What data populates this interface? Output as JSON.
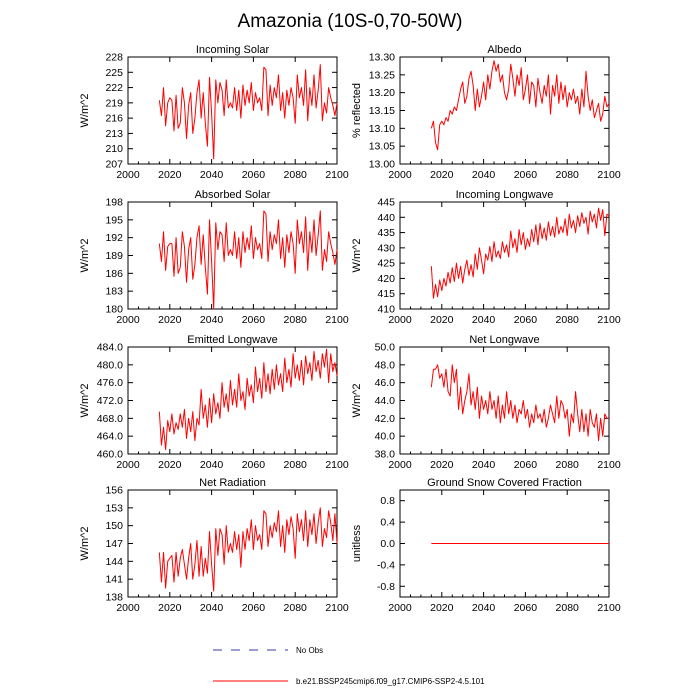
{
  "title": "Amazonia (10S-0,70-50W)",
  "legend": [
    {
      "label": "No Obs",
      "style": "dashed",
      "color": "#3a3aa0"
    },
    {
      "label": "b.e21.BSSP245cmip6.f09_g17.CMIP6-SSP2-4.5.101",
      "style": "solid",
      "color": "#ff0000"
    }
  ],
  "chart_data": [
    {
      "type": "line",
      "title": "Incoming Solar",
      "ylabel": "W/m^2",
      "xlim": [
        2000,
        2100
      ],
      "xticks": [
        "2000",
        "2020",
        "2040",
        "2060",
        "2080",
        "2100"
      ],
      "ylim": [
        207,
        228
      ],
      "yticks": [
        "207",
        "210",
        "213",
        "216",
        "219",
        "222",
        "225",
        "228"
      ],
      "yvals": [
        207,
        210,
        213,
        216,
        219,
        222,
        225,
        228
      ],
      "series": [
        {
          "name": "b.e21.BSSP245cmip6.f09_g17.CMIP6-SSP2-4.5.101",
          "color": "#ff0000",
          "x_start": 2015,
          "values": [
            219.5,
            216.5,
            222.0,
            214.5,
            219.0,
            220.0,
            219.5,
            213.5,
            220.5,
            214.0,
            215.0,
            222.0,
            219.0,
            212.0,
            218.5,
            221.0,
            213.0,
            216.0,
            221.0,
            223.5,
            216.0,
            221.0,
            215.0,
            210.5,
            224.0,
            217.0,
            208.0,
            223.5,
            219.0,
            223.0,
            221.5,
            216.5,
            223.5,
            218.0,
            219.0,
            218.0,
            222.0,
            217.5,
            221.5,
            216.0,
            222.5,
            218.5,
            221.5,
            219.0,
            223.0,
            217.5,
            221.0,
            219.0,
            220.0,
            217.5,
            226.0,
            225.5,
            216.5,
            222.5,
            218.5,
            222.0,
            220.0,
            224.5,
            217.5,
            221.0,
            216.0,
            221.5,
            218.5,
            222.0,
            220.0,
            215.0,
            224.5,
            220.0,
            222.0,
            218.5,
            225.5,
            215.5,
            222.0,
            218.5,
            224.5,
            218.0,
            221.5,
            226.5,
            215.5,
            219.0,
            217.0,
            222.0,
            220.0,
            218.5,
            216.5,
            219.0
          ]
        }
      ]
    },
    {
      "type": "line",
      "title": "Albedo",
      "ylabel": "% reflected",
      "xlim": [
        2000,
        2100
      ],
      "xticks": [
        "2000",
        "2020",
        "2040",
        "2060",
        "2080",
        "2100"
      ],
      "ylim": [
        13.0,
        13.3
      ],
      "yticks": [
        "13.00",
        "13.05",
        "13.10",
        "13.15",
        "13.20",
        "13.25",
        "13.30"
      ],
      "yvals": [
        13.0,
        13.05,
        13.1,
        13.15,
        13.2,
        13.25,
        13.3
      ],
      "series": [
        {
          "name": "b.e21.BSSP245cmip6.f09_g17.CMIP6-SSP2-4.5.101",
          "color": "#ff0000",
          "x_start": 2015,
          "values": [
            13.1,
            13.12,
            13.06,
            13.04,
            13.11,
            13.12,
            13.11,
            13.13,
            13.12,
            13.15,
            13.14,
            13.16,
            13.15,
            13.18,
            13.21,
            13.23,
            13.17,
            13.19,
            13.24,
            13.26,
            13.22,
            13.15,
            13.21,
            13.16,
            13.19,
            13.23,
            13.18,
            13.25,
            13.21,
            13.26,
            13.29,
            13.26,
            13.28,
            13.23,
            13.25,
            13.2,
            13.18,
            13.21,
            13.28,
            13.24,
            13.19,
            13.25,
            13.22,
            13.27,
            13.18,
            13.21,
            13.25,
            13.17,
            13.23,
            13.22,
            13.16,
            13.24,
            13.2,
            13.17,
            13.22,
            13.19,
            13.25,
            13.14,
            13.22,
            13.19,
            13.25,
            13.17,
            13.23,
            13.18,
            13.22,
            13.16,
            13.2,
            13.18,
            13.21,
            13.17,
            13.19,
            13.14,
            13.21,
            13.16,
            13.26,
            13.19,
            13.15,
            13.18,
            13.13,
            13.15,
            13.17,
            13.12,
            13.14,
            13.19,
            13.16,
            13.17
          ]
        }
      ]
    },
    {
      "type": "line",
      "title": "Absorbed Solar",
      "ylabel": "W/m^2",
      "xlim": [
        2000,
        2100
      ],
      "xticks": [
        "2000",
        "2020",
        "2040",
        "2060",
        "2080",
        "2100"
      ],
      "ylim": [
        180,
        198
      ],
      "yticks": [
        "180",
        "183",
        "186",
        "189",
        "192",
        "195",
        "198"
      ],
      "yvals": [
        180,
        183,
        186,
        189,
        192,
        195,
        198
      ],
      "series": [
        {
          "name": "b.e21.BSSP245cmip6.f09_g17.CMIP6-SSP2-4.5.101",
          "color": "#ff0000",
          "x_start": 2015,
          "values": [
            191.0,
            188.0,
            193.0,
            186.5,
            190.5,
            191.0,
            191.0,
            185.5,
            192.0,
            186.0,
            187.0,
            193.0,
            190.5,
            184.5,
            190.0,
            192.0,
            185.0,
            187.5,
            192.0,
            194.0,
            187.5,
            192.5,
            187.0,
            182.5,
            195.0,
            188.0,
            180.0,
            194.5,
            190.0,
            193.0,
            192.5,
            188.0,
            194.5,
            189.0,
            190.0,
            189.0,
            193.0,
            188.5,
            192.0,
            187.0,
            193.0,
            189.5,
            192.0,
            190.0,
            194.0,
            188.5,
            192.0,
            190.0,
            191.0,
            188.5,
            196.5,
            196.0,
            188.0,
            193.0,
            190.0,
            192.5,
            191.0,
            195.0,
            188.5,
            192.0,
            187.0,
            192.5,
            189.5,
            193.0,
            191.0,
            186.0,
            195.0,
            191.0,
            193.0,
            189.5,
            195.5,
            186.5,
            193.0,
            189.5,
            195.0,
            189.0,
            192.5,
            196.5,
            186.5,
            190.0,
            188.0,
            193.0,
            191.0,
            189.5,
            187.5,
            190.0
          ]
        }
      ]
    },
    {
      "type": "line",
      "title": "Incoming Longwave",
      "ylabel": "W/m^2",
      "xlim": [
        2000,
        2100
      ],
      "xticks": [
        "2000",
        "2020",
        "2040",
        "2060",
        "2080",
        "2100"
      ],
      "ylim": [
        410,
        445
      ],
      "yticks": [
        "410",
        "415",
        "420",
        "425",
        "430",
        "435",
        "440",
        "445"
      ],
      "yvals": [
        410,
        415,
        420,
        425,
        430,
        435,
        440,
        445
      ],
      "series": [
        {
          "name": "b.e21.BSSP245cmip6.f09_g17.CMIP6-SSP2-4.5.101",
          "color": "#ff0000",
          "x_start": 2015,
          "values": [
            424.0,
            413.5,
            418.0,
            414.0,
            419.5,
            416.0,
            420.0,
            417.5,
            422.0,
            418.5,
            423.5,
            419.0,
            425.0,
            420.0,
            424.0,
            418.5,
            423.0,
            426.0,
            421.0,
            424.5,
            420.5,
            428.0,
            423.0,
            430.0,
            426.0,
            421.5,
            428.0,
            426.0,
            430.5,
            425.5,
            432.0,
            427.0,
            429.0,
            426.5,
            432.0,
            428.5,
            431.0,
            427.0,
            435.5,
            430.0,
            433.0,
            428.5,
            436.0,
            431.0,
            435.0,
            429.5,
            433.0,
            430.5,
            436.0,
            432.0,
            437.5,
            431.0,
            438.0,
            433.0,
            436.5,
            432.5,
            438.5,
            434.0,
            437.0,
            433.5,
            440.0,
            434.5,
            437.0,
            435.0,
            439.5,
            434.0,
            441.0,
            436.5,
            439.0,
            435.0,
            440.5,
            437.0,
            441.5,
            438.0,
            440.0,
            434.5,
            442.0,
            438.5,
            441.0,
            436.5,
            443.0,
            439.0,
            442.5,
            434.0,
            441.0,
            440.5
          ]
        }
      ]
    },
    {
      "type": "line",
      "title": "Emitted Longwave",
      "ylabel": "W/m^2",
      "xlim": [
        2000,
        2100
      ],
      "xticks": [
        "2000",
        "2020",
        "2040",
        "2060",
        "2080",
        "2100"
      ],
      "ylim": [
        460,
        484
      ],
      "yticks": [
        "460.0",
        "464.0",
        "468.0",
        "472.0",
        "476.0",
        "480.0",
        "484.0"
      ],
      "yvals": [
        460,
        464,
        468,
        472,
        476,
        480,
        484
      ],
      "series": [
        {
          "name": "b.e21.BSSP245cmip6.f09_g17.CMIP6-SSP2-4.5.101",
          "color": "#ff0000",
          "x_start": 2015,
          "values": [
            469.5,
            462.0,
            466.0,
            461.0,
            467.5,
            465.0,
            469.0,
            464.5,
            467.0,
            465.5,
            469.0,
            466.0,
            470.0,
            463.5,
            468.0,
            465.0,
            469.5,
            463.0,
            468.0,
            466.5,
            474.5,
            468.0,
            471.0,
            466.0,
            472.5,
            467.0,
            473.5,
            469.0,
            471.5,
            468.0,
            476.0,
            470.5,
            473.5,
            469.5,
            476.5,
            471.0,
            474.5,
            470.5,
            478.0,
            472.0,
            474.0,
            470.0,
            477.0,
            473.0,
            475.5,
            471.5,
            479.5,
            474.0,
            477.0,
            472.5,
            480.5,
            474.0,
            478.0,
            473.5,
            479.0,
            474.5,
            480.0,
            475.5,
            478.0,
            474.0,
            481.5,
            476.0,
            479.0,
            475.0,
            482.5,
            477.0,
            480.0,
            476.5,
            481.0,
            475.5,
            482.0,
            478.0,
            480.5,
            476.5,
            483.0,
            478.5,
            481.0,
            477.0,
            482.5,
            479.5,
            483.5,
            476.0,
            482.5,
            478.5,
            480.5,
            477.5
          ]
        }
      ]
    },
    {
      "type": "line",
      "title": "Net Longwave",
      "ylabel": "W/m^2",
      "xlim": [
        2000,
        2100
      ],
      "xticks": [
        "2000",
        "2020",
        "2040",
        "2060",
        "2080",
        "2100"
      ],
      "ylim": [
        38,
        50
      ],
      "yticks": [
        "38.0",
        "40.0",
        "42.0",
        "44.0",
        "46.0",
        "48.0",
        "50.0"
      ],
      "yvals": [
        38,
        40,
        42,
        44,
        46,
        48,
        50
      ],
      "series": [
        {
          "name": "b.e21.BSSP245cmip6.f09_g17.CMIP6-SSP2-4.5.101",
          "color": "#ff0000",
          "x_start": 2015,
          "values": [
            45.5,
            47.5,
            47.5,
            48.0,
            46.5,
            47.0,
            45.5,
            47.5,
            45.0,
            44.5,
            48.0,
            46.0,
            47.5,
            43.0,
            45.5,
            42.5,
            44.0,
            45.0,
            47.0,
            43.5,
            45.0,
            43.0,
            45.5,
            42.0,
            44.5,
            43.0,
            44.0,
            42.5,
            45.0,
            43.0,
            44.0,
            42.0,
            44.5,
            41.5,
            43.5,
            42.0,
            45.0,
            42.5,
            44.0,
            42.0,
            43.5,
            41.5,
            43.0,
            42.5,
            44.0,
            42.0,
            43.0,
            41.0,
            42.5,
            41.5,
            43.5,
            42.0,
            42.5,
            41.5,
            43.0,
            41.0,
            42.0,
            43.5,
            42.5,
            41.5,
            44.5,
            42.0,
            44.0,
            43.5,
            42.0,
            43.0,
            40.0,
            42.5,
            41.5,
            45.0,
            42.5,
            40.5,
            43.0,
            40.5,
            42.5,
            40.0,
            43.0,
            41.5,
            41.0,
            42.5,
            39.5,
            42.0,
            40.0,
            42.5,
            42.0,
            42.0
          ]
        }
      ]
    },
    {
      "type": "line",
      "title": "Net Radiation",
      "ylabel": "W/m^2",
      "xlim": [
        2000,
        2100
      ],
      "xticks": [
        "2000",
        "2020",
        "2040",
        "2060",
        "2080",
        "2100"
      ],
      "ylim": [
        138,
        156
      ],
      "yticks": [
        "138",
        "141",
        "144",
        "147",
        "150",
        "153",
        "156"
      ],
      "yvals": [
        138,
        141,
        144,
        147,
        150,
        153,
        156
      ],
      "series": [
        {
          "name": "b.e21.BSSP245cmip6.f09_g17.CMIP6-SSP2-4.5.101",
          "color": "#ff0000",
          "x_start": 2015,
          "values": [
            145.5,
            140.5,
            145.5,
            139.5,
            144.0,
            144.5,
            145.0,
            140.5,
            145.5,
            141.5,
            144.5,
            146.0,
            143.5,
            141.0,
            144.5,
            147.0,
            141.0,
            143.5,
            147.5,
            141.5,
            146.5,
            141.5,
            144.5,
            142.0,
            149.0,
            143.5,
            139.0,
            149.5,
            145.0,
            149.5,
            148.5,
            143.5,
            150.0,
            145.5,
            147.0,
            145.5,
            149.0,
            146.0,
            148.5,
            143.0,
            149.0,
            146.0,
            149.5,
            147.5,
            151.0,
            146.0,
            150.0,
            147.5,
            148.5,
            146.0,
            152.5,
            152.0,
            146.5,
            150.0,
            148.0,
            150.5,
            149.0,
            152.5,
            146.5,
            150.0,
            145.5,
            151.0,
            148.5,
            151.5,
            149.5,
            144.5,
            152.0,
            149.0,
            151.0,
            147.5,
            152.5,
            146.5,
            151.0,
            148.5,
            152.0,
            147.0,
            150.5,
            153.0,
            146.5,
            149.5,
            148.0,
            152.5,
            150.5,
            147.5,
            152.0,
            147.0
          ]
        }
      ]
    },
    {
      "type": "line",
      "title": "Ground Snow Covered Fraction",
      "ylabel": "unitless",
      "xlim": [
        2000,
        2100
      ],
      "xticks": [
        "2000",
        "2020",
        "2040",
        "2060",
        "2080",
        "2100"
      ],
      "ylim": [
        -1.0,
        1.0
      ],
      "yticks": [
        "-0.8",
        "-0.4",
        "0.0",
        "0.4",
        "0.8"
      ],
      "yvals": [
        -0.8,
        -0.4,
        0.0,
        0.4,
        0.8
      ],
      "series": [
        {
          "name": "b.e21.BSSP245cmip6.f09_g17.CMIP6-SSP2-4.5.101",
          "color": "#ff0000",
          "x_start": 2015,
          "values": [
            0,
            0,
            0,
            0,
            0,
            0,
            0,
            0,
            0,
            0,
            0,
            0,
            0,
            0,
            0,
            0,
            0,
            0,
            0,
            0,
            0,
            0,
            0,
            0,
            0,
            0,
            0,
            0,
            0,
            0,
            0,
            0,
            0,
            0,
            0,
            0,
            0,
            0,
            0,
            0,
            0,
            0,
            0,
            0,
            0,
            0,
            0,
            0,
            0,
            0,
            0,
            0,
            0,
            0,
            0,
            0,
            0,
            0,
            0,
            0,
            0,
            0,
            0,
            0,
            0,
            0,
            0,
            0,
            0,
            0,
            0,
            0,
            0,
            0,
            0,
            0,
            0,
            0,
            0,
            0,
            0,
            0,
            0,
            0,
            0,
            0
          ]
        }
      ]
    }
  ]
}
